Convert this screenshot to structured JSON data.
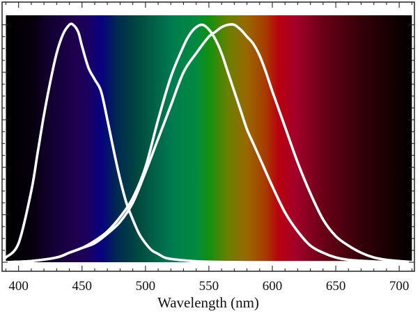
{
  "chart_data": {
    "type": "line",
    "title": "",
    "xlabel": "Wavelength (nm)",
    "ylabel": "",
    "xlim": [
      387,
      712
    ],
    "ylim": [
      0,
      1.04
    ],
    "x_ticks": [
      "400",
      "450",
      "500",
      "550",
      "600",
      "650",
      "700"
    ],
    "x_tick_values": [
      400,
      450,
      500,
      550,
      600,
      650,
      700
    ],
    "background": {
      "kind": "visible-spectrum",
      "range": [
        390,
        710
      ],
      "stops": [
        {
          "nm": 390,
          "color": "#000000"
        },
        {
          "nm": 410,
          "color": "#05000c"
        },
        {
          "nm": 425,
          "color": "#120030"
        },
        {
          "nm": 445,
          "color": "#1e004f"
        },
        {
          "nm": 455,
          "color": "#1a0060"
        },
        {
          "nm": 465,
          "color": "#080080"
        },
        {
          "nm": 478,
          "color": "#002a50"
        },
        {
          "nm": 495,
          "color": "#004a40"
        },
        {
          "nm": 520,
          "color": "#007a50"
        },
        {
          "nm": 540,
          "color": "#008a40"
        },
        {
          "nm": 550,
          "color": "#129010"
        },
        {
          "nm": 565,
          "color": "#6a8000"
        },
        {
          "nm": 580,
          "color": "#996800"
        },
        {
          "nm": 595,
          "color": "#a83a00"
        },
        {
          "nm": 605,
          "color": "#b80010"
        },
        {
          "nm": 618,
          "color": "#a40028"
        },
        {
          "nm": 640,
          "color": "#6a0018"
        },
        {
          "nm": 670,
          "color": "#340008"
        },
        {
          "nm": 700,
          "color": "#0e0000"
        },
        {
          "nm": 710,
          "color": "#000000"
        }
      ]
    },
    "series": [
      {
        "color": "#ffffff",
        "x": [
          390,
          400,
          410,
          415,
          420,
          425,
          430,
          435,
          440,
          443,
          447,
          450,
          455,
          460,
          465,
          470,
          475,
          480,
          485,
          490,
          495,
          500,
          505,
          510,
          515,
          520,
          530,
          540,
          550,
          560,
          580,
          600,
          640,
          700
        ],
        "y": [
          0.02,
          0.08,
          0.3,
          0.46,
          0.62,
          0.76,
          0.88,
          0.96,
          1.0,
          1.0,
          0.97,
          0.91,
          0.82,
          0.77,
          0.72,
          0.6,
          0.47,
          0.35,
          0.25,
          0.18,
          0.12,
          0.08,
          0.05,
          0.035,
          0.02,
          0.014,
          0.008,
          0.004,
          0.002,
          0.001,
          0.0,
          0.0,
          0.0,
          0.0
        ]
      },
      {
        "color": "#ffffff",
        "x": [
          390,
          410,
          430,
          440,
          450,
          460,
          470,
          480,
          490,
          500,
          510,
          520,
          530,
          535,
          540,
          545,
          550,
          555,
          560,
          565,
          570,
          575,
          580,
          585,
          590,
          600,
          610,
          620,
          630,
          640,
          650,
          660,
          670,
          680,
          690,
          700
        ],
        "y": [
          0.0,
          0.005,
          0.02,
          0.04,
          0.06,
          0.09,
          0.13,
          0.19,
          0.27,
          0.4,
          0.6,
          0.78,
          0.91,
          0.96,
          0.99,
          1.0,
          0.98,
          0.94,
          0.88,
          0.8,
          0.72,
          0.64,
          0.56,
          0.5,
          0.44,
          0.32,
          0.21,
          0.13,
          0.07,
          0.04,
          0.02,
          0.01,
          0.006,
          0.003,
          0.001,
          0.0
        ]
      },
      {
        "color": "#ffffff",
        "x": [
          390,
          410,
          430,
          440,
          450,
          460,
          470,
          480,
          490,
          500,
          510,
          520,
          530,
          540,
          550,
          555,
          560,
          565,
          570,
          575,
          580,
          585,
          590,
          595,
          600,
          610,
          620,
          630,
          640,
          650,
          660,
          670,
          680,
          690,
          700,
          710
        ],
        "y": [
          0.0,
          0.005,
          0.02,
          0.04,
          0.06,
          0.08,
          0.12,
          0.17,
          0.25,
          0.38,
          0.52,
          0.66,
          0.8,
          0.88,
          0.95,
          0.97,
          0.99,
          1.0,
          1.0,
          0.98,
          0.95,
          0.92,
          0.87,
          0.8,
          0.72,
          0.57,
          0.42,
          0.29,
          0.18,
          0.11,
          0.07,
          0.04,
          0.02,
          0.01,
          0.005,
          0.001
        ]
      }
    ]
  }
}
